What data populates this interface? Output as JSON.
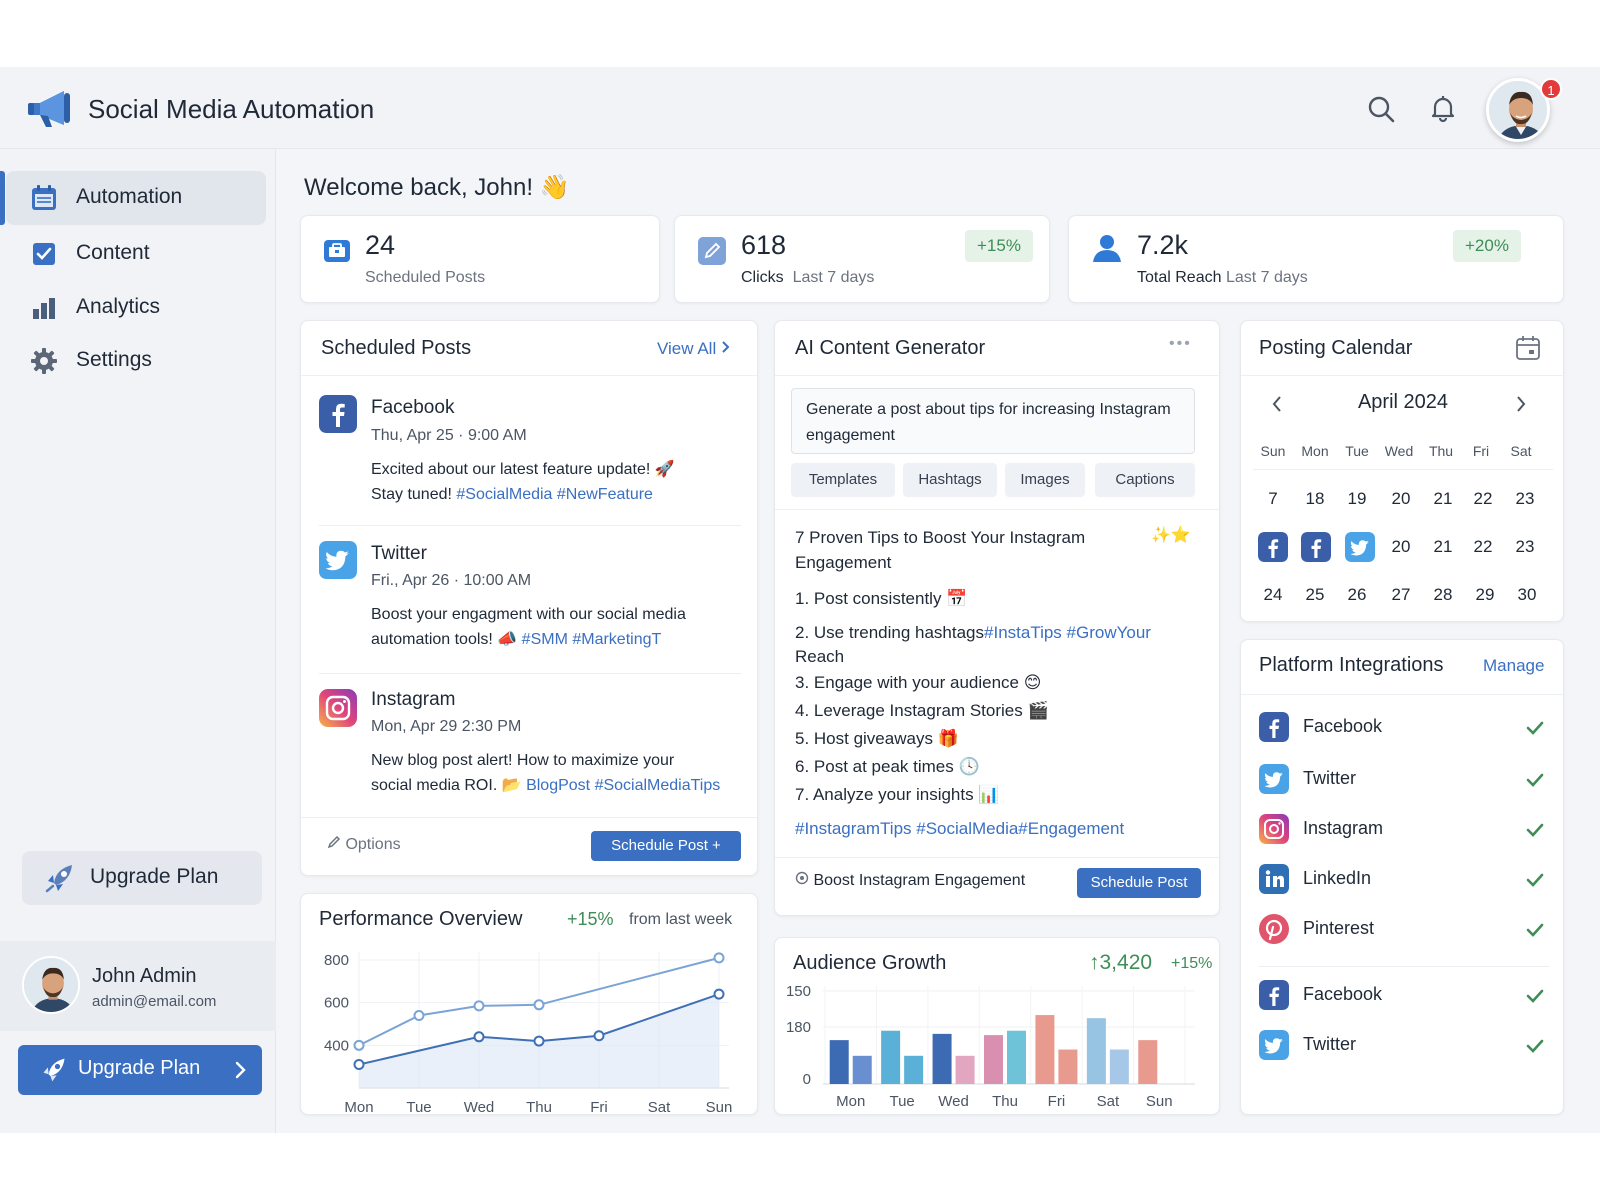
{
  "app": {
    "title": "Social Media Automation",
    "notification_count": "1"
  },
  "sidebar": {
    "items": [
      {
        "label": "Automation",
        "icon": "calendar-icon"
      },
      {
        "label": "Content",
        "icon": "checkbox-icon"
      },
      {
        "label": "Analytics",
        "icon": "bar-chart-icon"
      },
      {
        "label": "Settings",
        "icon": "gear-icon"
      }
    ],
    "upgrade_box_label": "Upgrade Plan",
    "user": {
      "name": "John Admin",
      "email": "admin@email.com"
    },
    "upgrade_button_label": "Upgrade Plan"
  },
  "welcome": "Welcome back, John! 👋",
  "stats": [
    {
      "value": "24",
      "label": "Scheduled Posts",
      "sublabel": "",
      "change": ""
    },
    {
      "value": "618",
      "label": "Clicks",
      "sublabel": "Last 7 days",
      "change": "+15%"
    },
    {
      "value": "7.2k",
      "label": "Total Reach",
      "sublabel": "Last 7 days",
      "change": "+20%"
    }
  ],
  "scheduled_posts": {
    "title": "Scheduled Posts",
    "view_all": "View All",
    "posts": [
      {
        "platform": "Facebook",
        "date": "Thu,  Apr 25  ·  9:00 AM",
        "text": "Excited about our latest feature update! 🚀",
        "text2": "Stay tuned! ",
        "tags": "#SocialMedia #NewFeature"
      },
      {
        "platform": "Twitter",
        "date": "Fri.,  Apr 26  ·  10:00 AM",
        "text": "Boost your engagment with our social media",
        "text2": "automation tools! 📣 ",
        "tags": "#SMM #MarketingT"
      },
      {
        "platform": "Instagram",
        "date": "Mon, Apr 29    2:30 PM",
        "text": "New blog post alert! How to maximize your",
        "text2": "social media ROI. 📂 ",
        "tags": "BlogPost #SocialMediaTips"
      }
    ],
    "options_label": "Options",
    "schedule_button": "Schedule Post  +"
  },
  "ai_generator": {
    "title": "AI Content Generator",
    "more_label": "•••",
    "prompt": "Generate a post about tips for increasing Instagram engagement",
    "chips": [
      "Templates",
      "Hashtags",
      "Images",
      "Captions"
    ],
    "output_title_line1": "7 Proven Tips to Boost Your Instagram",
    "output_title_line2": "Engagement",
    "sparkles": "✨⭐",
    "tips": [
      "1.  Post consistently  📅",
      "2.  Use trending hashtags",
      "     Reach",
      "3.  Engage with your audience  😊",
      "4.  Leverage Instagram Stories  🎬",
      "5.  Host giveaways  🎁",
      "6.  Post at peak times  🕓",
      "7.  Analyze your insights  📊"
    ],
    "tip2_tags": "#InstaTips #GrowYour",
    "hashtags": "#InstagramTips #SocialMedia#Engagement",
    "footer_label": "Boost Instagram Engagement",
    "schedule_button": "Schedule Post"
  },
  "calendar": {
    "title": "Posting Calendar",
    "month": "April 2024",
    "days_of_week": [
      "Sun",
      "Mon",
      "Tue",
      "Wed",
      "Thu",
      "Fri",
      "Sat"
    ],
    "row1": [
      "7",
      "18",
      "19",
      "20",
      "21",
      "22",
      "23"
    ],
    "row2": [
      "",
      "",
      "",
      "20",
      "21",
      "22",
      "23"
    ],
    "row2_icons": [
      "facebook-icon",
      "facebook-icon",
      "twitter-icon"
    ],
    "row3": [
      "24",
      "25",
      "26",
      "27",
      "28",
      "29",
      "30"
    ]
  },
  "integrations": {
    "title": "Platform Integrations",
    "manage": "Manage",
    "items": [
      {
        "name": "Facebook",
        "icon": "facebook-icon"
      },
      {
        "name": "Twitter",
        "icon": "twitter-icon"
      },
      {
        "name": "Instagram",
        "icon": "instagram-icon"
      },
      {
        "name": "LinkedIn",
        "icon": "linkedin-icon"
      },
      {
        "name": "Pinterest",
        "icon": "pinterest-icon"
      },
      {
        "name": "Facebook",
        "icon": "facebook-icon"
      },
      {
        "name": "Twitter",
        "icon": "twitter-icon"
      }
    ]
  },
  "performance": {
    "title": "Performance Overview",
    "change": "+15%",
    "change_label": "from last week"
  },
  "audience": {
    "title": "Audience Growth",
    "total": "↑3,420",
    "change": "+15%"
  },
  "chart_data": [
    {
      "type": "line",
      "title": "Performance Overview",
      "categories": [
        "Mon",
        "Tue",
        "Wed",
        "Thu",
        "Fri",
        "Sat",
        "Sun"
      ],
      "y_ticks": [
        "800",
        "600",
        "400"
      ],
      "ylim": [
        200,
        800
      ],
      "grid": true,
      "series": [
        {
          "values": [
            400,
            540,
            585,
            590,
            null,
            null,
            810
          ],
          "color": "#7aa3d6"
        },
        {
          "values": [
            310,
            null,
            440,
            420,
            445,
            null,
            640
          ],
          "color": "#3f6fb5"
        }
      ]
    },
    {
      "type": "bar",
      "title": "Audience Growth",
      "categories": [
        "Mon",
        "Tue",
        "Wed",
        "Thu",
        "Fri",
        "Sat",
        "Sun"
      ],
      "y_ticks": [
        "150",
        "180",
        "0"
      ],
      "ylim": [
        0,
        150
      ],
      "grid": true,
      "series": [
        {
          "values": [
            70,
            85,
            80,
            78,
            110,
            105,
            70
          ],
          "colors": [
            "#3c6bb3",
            "#5ab0d6",
            "#3c6bb3",
            "#d98fb0",
            "#e89a8e",
            "#96c4e2",
            "#e89a8e"
          ]
        },
        {
          "values": [
            45,
            45,
            45,
            85,
            55,
            55,
            0
          ],
          "colors": [
            "#6a8fd0",
            "#5ab0d6",
            "#e2a6c0",
            "#6fc3d8",
            "#e89a8e",
            "#a6c7e8",
            "#e89a8e"
          ]
        }
      ]
    }
  ],
  "colors": {
    "accent": "#3a6fc2",
    "positive": "#3f8d57",
    "positive_bg": "#e5f2e8",
    "facebook": "#3b5ea8",
    "twitter": "#4aa3e6"
  }
}
